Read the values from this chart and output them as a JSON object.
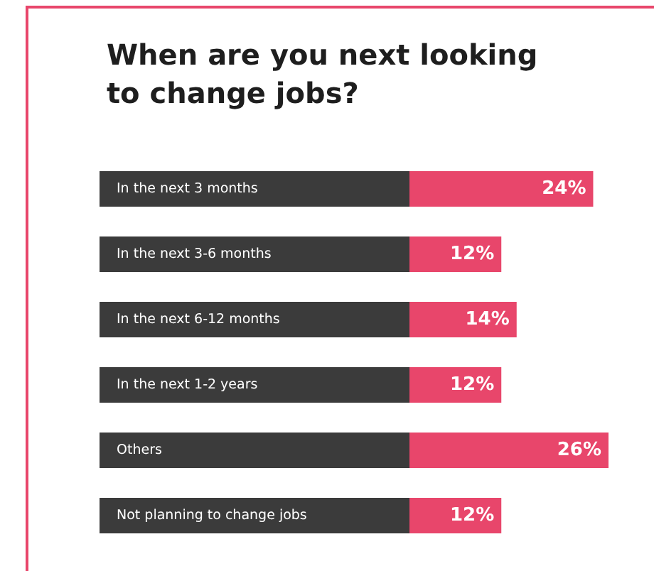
{
  "chart_data": {
    "type": "bar",
    "orientation": "horizontal",
    "title": "When are you next looking to change jobs?",
    "categories": [
      "In the next 3 months",
      "In the next 3-6 months",
      "In the next 6-12 months",
      "In the next 1-2 years",
      "Others",
      "Not planning to change jobs"
    ],
    "values": [
      24,
      12,
      14,
      12,
      26,
      12
    ],
    "color": "#e8466b",
    "data_labels": true,
    "value_labels": [
      "24%",
      "12%",
      "14%",
      "12%",
      "26%",
      "12%"
    ]
  }
}
